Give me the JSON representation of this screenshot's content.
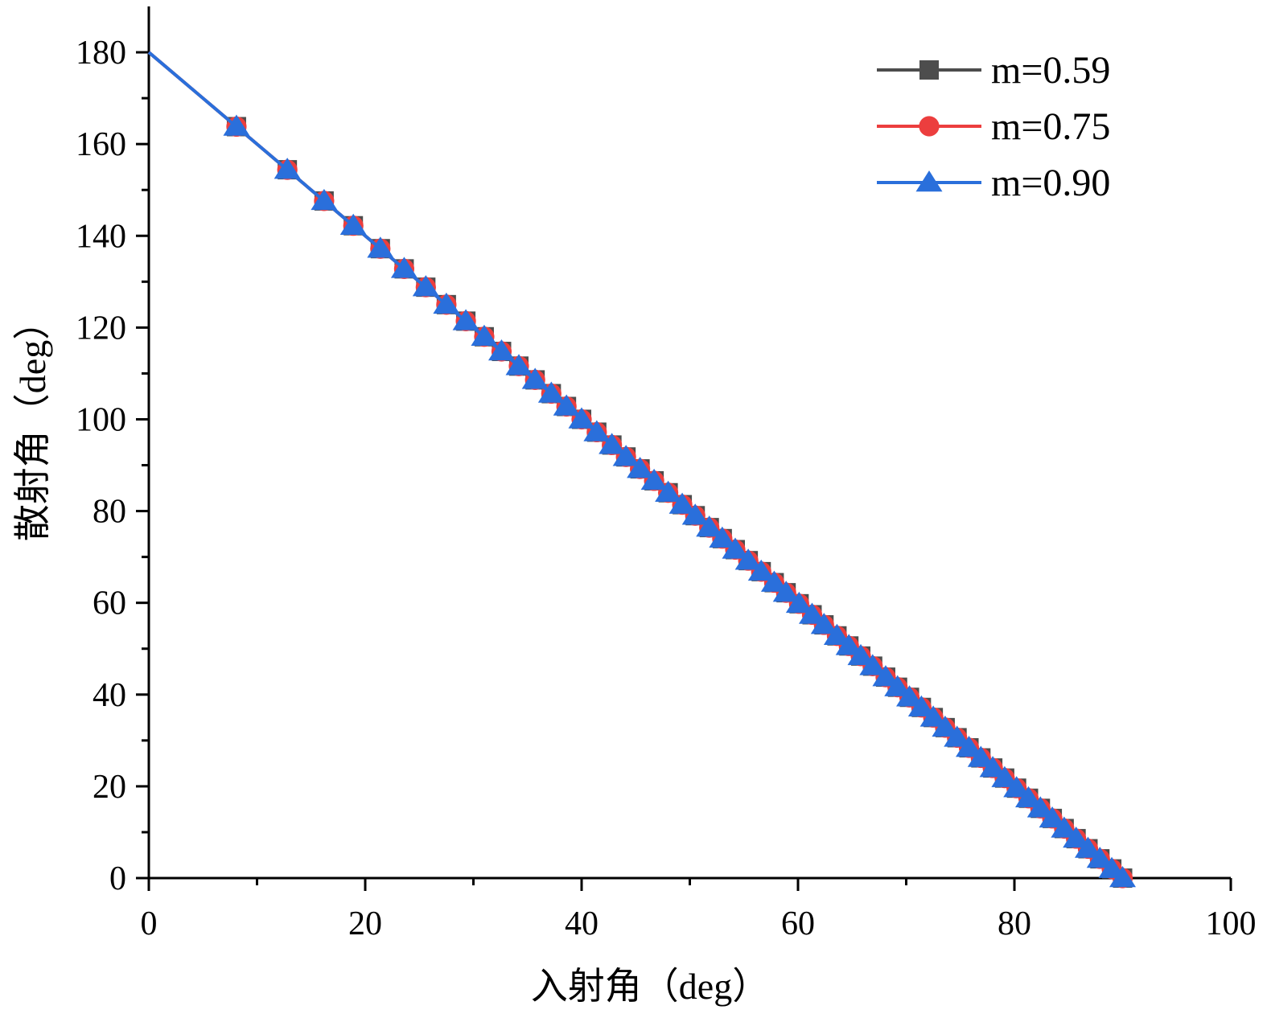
{
  "chart_data": {
    "type": "line",
    "xlabel": "入射角（deg）",
    "ylabel": "散射角（deg）",
    "xlim": [
      0,
      100
    ],
    "ylim": [
      0,
      190
    ],
    "x_ticks": [
      0,
      20,
      40,
      60,
      80,
      100
    ],
    "y_ticks": [
      0,
      20,
      40,
      60,
      80,
      100,
      120,
      140,
      160,
      180
    ],
    "grid": false,
    "legend_position": "top-right",
    "x": [
      0,
      8.1,
      12.8,
      16.2,
      18.9,
      21.4,
      23.6,
      25.6,
      27.5,
      29.3,
      31.0,
      32.6,
      34.2,
      35.7,
      37.2,
      38.6,
      40.0,
      41.4,
      42.8,
      44.1,
      45.4,
      46.7,
      48.0,
      49.3,
      50.5,
      51.8,
      53.0,
      54.2,
      55.4,
      56.6,
      57.8,
      58.9,
      60.1,
      61.3,
      62.4,
      63.6,
      64.7,
      65.8,
      66.9,
      68.1,
      69.2,
      70.3,
      71.4,
      72.5,
      73.6,
      74.7,
      75.8,
      76.9,
      78.0,
      79.1,
      80.2,
      81.3,
      82.4,
      83.5,
      84.6,
      85.7,
      86.8,
      87.9,
      89.0,
      90.0
    ],
    "series": [
      {
        "name": "m=0.59",
        "color": "#4d4d4d",
        "marker": "square",
        "values": [
          180,
          163.8,
          154.4,
          147.6,
          142.2,
          137.2,
          132.8,
          128.8,
          125.0,
          121.4,
          118.0,
          114.8,
          111.6,
          108.6,
          105.6,
          102.8,
          100.0,
          97.2,
          94.4,
          91.8,
          89.2,
          86.6,
          84.0,
          81.4,
          79.0,
          76.4,
          74.0,
          71.6,
          69.2,
          66.8,
          64.4,
          62.2,
          59.8,
          57.4,
          55.2,
          52.8,
          50.6,
          48.4,
          46.2,
          43.8,
          41.6,
          39.4,
          37.2,
          35.0,
          32.8,
          30.6,
          28.4,
          26.2,
          24.0,
          21.8,
          19.6,
          17.4,
          15.2,
          13.0,
          10.8,
          8.6,
          6.4,
          4.2,
          2.0,
          0
        ]
      },
      {
        "name": "m=0.75",
        "color": "#ec3e3e",
        "marker": "circle",
        "values": [
          180,
          163.8,
          154.4,
          147.6,
          142.2,
          137.2,
          132.8,
          128.8,
          125.0,
          121.4,
          118.0,
          114.8,
          111.6,
          108.6,
          105.6,
          102.8,
          100.0,
          97.2,
          94.4,
          91.8,
          89.2,
          86.6,
          84.0,
          81.4,
          79.0,
          76.4,
          74.0,
          71.6,
          69.2,
          66.8,
          64.4,
          62.2,
          59.8,
          57.4,
          55.2,
          52.8,
          50.6,
          48.4,
          46.2,
          43.8,
          41.6,
          39.4,
          37.2,
          35.0,
          32.8,
          30.6,
          28.4,
          26.2,
          24.0,
          21.8,
          19.6,
          17.4,
          15.2,
          13.0,
          10.8,
          8.6,
          6.4,
          4.2,
          2.0,
          0
        ]
      },
      {
        "name": "m=0.90",
        "color": "#2a6fdb",
        "marker": "triangle",
        "values": [
          180,
          163.8,
          154.4,
          147.6,
          142.2,
          137.2,
          132.8,
          128.8,
          125.0,
          121.4,
          118.0,
          114.8,
          111.6,
          108.6,
          105.6,
          102.8,
          100.0,
          97.2,
          94.4,
          91.8,
          89.2,
          86.6,
          84.0,
          81.4,
          79.0,
          76.4,
          74.0,
          71.6,
          69.2,
          66.8,
          64.4,
          62.2,
          59.8,
          57.4,
          55.2,
          52.8,
          50.6,
          48.4,
          46.2,
          43.8,
          41.6,
          39.4,
          37.2,
          35.0,
          32.8,
          30.6,
          28.4,
          26.2,
          24.0,
          21.8,
          19.6,
          17.4,
          15.2,
          13.0,
          10.8,
          8.6,
          6.4,
          4.2,
          2.0,
          0
        ]
      }
    ]
  }
}
